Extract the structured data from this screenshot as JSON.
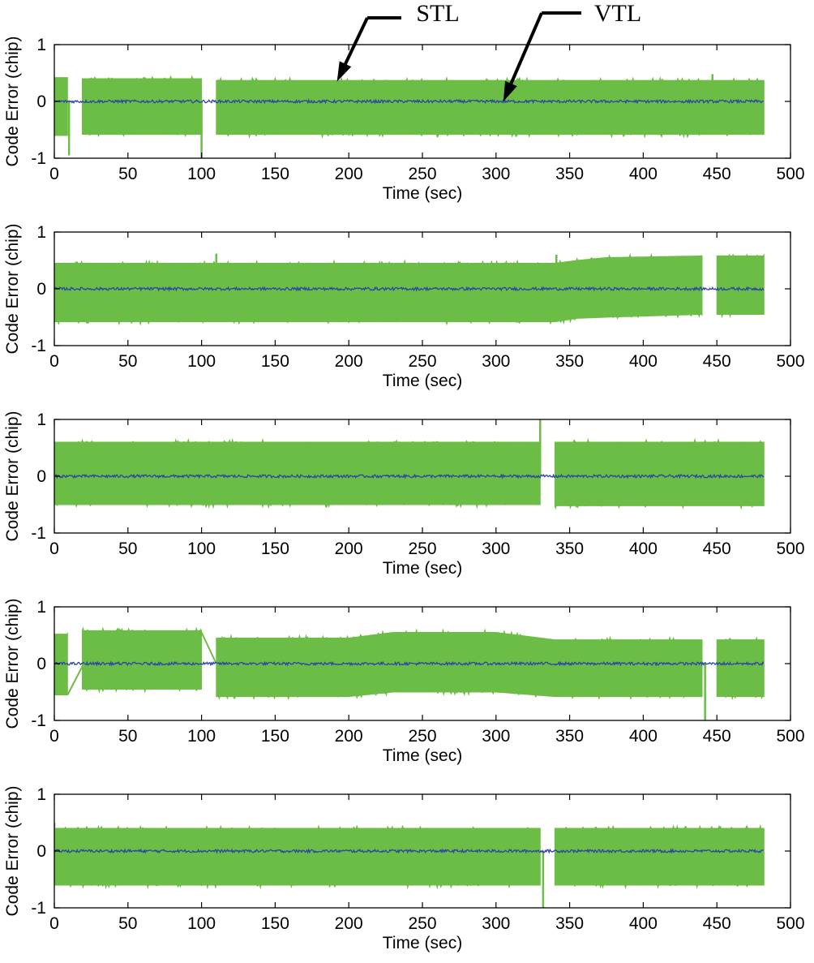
{
  "colors": {
    "stl": "#6cbd45",
    "vtl": "#2b45a6",
    "axes": "#000000",
    "background": "#ffffff"
  },
  "annotations": [
    {
      "label": "STL",
      "target_x": 192,
      "target_y": 0.35,
      "panel": 0
    },
    {
      "label": "VTL",
      "target_x": 305,
      "target_y": 0.0,
      "panel": 0
    }
  ],
  "chart_data": [
    {
      "type": "line",
      "xlabel": "Time (sec)",
      "ylabel": "Code Error (chip)",
      "xlim": [
        0,
        500
      ],
      "ylim": [
        -1,
        1
      ],
      "xticks": [
        0,
        50,
        100,
        150,
        200,
        250,
        300,
        350,
        400,
        450,
        500
      ],
      "yticks": [
        -1,
        0,
        1
      ],
      "grid": false,
      "series": [
        {
          "name": "STL",
          "kind": "envelope",
          "segments": [
            {
              "x": [
                0,
                9
              ],
              "upper": [
                0.42,
                0.42
              ],
              "lower": [
                -0.6,
                -0.6
              ]
            },
            {
              "x": [
                19,
                100
              ],
              "upper": [
                0.4,
                0.4
              ],
              "lower": [
                -0.58,
                -0.58
              ]
            },
            {
              "x": [
                110,
                482
              ],
              "upper": [
                0.37,
                0.37
              ],
              "lower": [
                -0.58,
                -0.58
              ]
            }
          ],
          "spikes": [
            [
              10,
              -0.95
            ],
            [
              100,
              -1.0
            ],
            [
              447,
              0.48
            ]
          ]
        },
        {
          "name": "VTL",
          "kind": "line",
          "x_range": [
            0,
            482
          ],
          "level": 0.0,
          "noise": 0.025
        }
      ]
    },
    {
      "type": "line",
      "xlabel": "Time (sec)",
      "ylabel": "Code Error (chip)",
      "xlim": [
        0,
        500
      ],
      "ylim": [
        -1,
        1
      ],
      "xticks": [
        0,
        50,
        100,
        150,
        200,
        250,
        300,
        350,
        400,
        450,
        500
      ],
      "yticks": [
        -1,
        0,
        1
      ],
      "grid": false,
      "series": [
        {
          "name": "STL",
          "kind": "envelope",
          "segments": [
            {
              "x": [
                0,
                340,
                355,
                375,
                440
              ],
              "upper": [
                0.45,
                0.45,
                0.5,
                0.55,
                0.58
              ],
              "lower": [
                -0.58,
                -0.58,
                -0.52,
                -0.5,
                -0.45
              ]
            },
            {
              "x": [
                450,
                482
              ],
              "upper": [
                0.58,
                0.58
              ],
              "lower": [
                -0.45,
                -0.45
              ]
            }
          ],
          "spikes": [
            [
              110,
              0.62
            ],
            [
              341,
              0.6
            ]
          ]
        },
        {
          "name": "VTL",
          "kind": "line",
          "x_range": [
            0,
            482
          ],
          "level": 0.0,
          "noise": 0.025
        }
      ]
    },
    {
      "type": "line",
      "xlabel": "Time (sec)",
      "ylabel": "Code Error (chip)",
      "xlim": [
        0,
        500
      ],
      "ylim": [
        -1,
        1
      ],
      "xticks": [
        0,
        50,
        100,
        150,
        200,
        250,
        300,
        350,
        400,
        450,
        500
      ],
      "yticks": [
        -1,
        0,
        1
      ],
      "grid": false,
      "series": [
        {
          "name": "STL",
          "kind": "envelope",
          "segments": [
            {
              "x": [
                0,
                330
              ],
              "upper": [
                0.6,
                0.6
              ],
              "lower": [
                -0.5,
                -0.5
              ]
            },
            {
              "x": [
                340,
                482
              ],
              "upper": [
                0.6,
                0.6
              ],
              "lower": [
                -0.52,
                -0.52
              ]
            }
          ],
          "spikes": [
            [
              330,
              1.0
            ]
          ]
        },
        {
          "name": "VTL",
          "kind": "line",
          "x_range": [
            0,
            482
          ],
          "level": 0.0,
          "noise": 0.025
        }
      ]
    },
    {
      "type": "line",
      "xlabel": "Time (sec)",
      "ylabel": "Code Error (chip)",
      "xlim": [
        0,
        500
      ],
      "ylim": [
        -1,
        1
      ],
      "xticks": [
        0,
        50,
        100,
        150,
        200,
        250,
        300,
        350,
        400,
        450,
        500
      ],
      "yticks": [
        -1,
        0,
        1
      ],
      "grid": false,
      "series": [
        {
          "name": "STL",
          "kind": "envelope",
          "segments": [
            {
              "x": [
                0,
                9
              ],
              "upper": [
                0.52,
                0.52
              ],
              "lower": [
                -0.55,
                -0.55
              ]
            },
            {
              "x": [
                19,
                100
              ],
              "upper": [
                0.58,
                0.58
              ],
              "lower": [
                -0.45,
                -0.45
              ]
            },
            {
              "x": [
                110,
                200,
                230,
                300,
                340,
                440
              ],
              "upper": [
                0.45,
                0.45,
                0.55,
                0.55,
                0.42,
                0.42
              ],
              "lower": [
                -0.58,
                -0.58,
                -0.5,
                -0.5,
                -0.58,
                -0.58
              ]
            },
            {
              "x": [
                450,
                482
              ],
              "upper": [
                0.42,
                0.42
              ],
              "lower": [
                -0.58,
                -0.58
              ]
            }
          ],
          "spikes": [
            [
              442,
              -1.0
            ]
          ],
          "ramps": [
            [
              [
                9,
                -0.55
              ],
              [
                20,
                0.0
              ]
            ],
            [
              [
                100,
                0.55
              ],
              [
                110,
                0.0
              ]
            ]
          ]
        },
        {
          "name": "VTL",
          "kind": "line",
          "x_range": [
            0,
            482
          ],
          "level": 0.0,
          "noise": 0.025
        }
      ]
    },
    {
      "type": "line",
      "xlabel": "Time (sec)",
      "ylabel": "Code Error (chip)",
      "xlim": [
        0,
        500
      ],
      "ylim": [
        -1,
        1
      ],
      "xticks": [
        0,
        50,
        100,
        150,
        200,
        250,
        300,
        350,
        400,
        450,
        500
      ],
      "yticks": [
        -1,
        0,
        1
      ],
      "grid": false,
      "series": [
        {
          "name": "STL",
          "kind": "envelope",
          "segments": [
            {
              "x": [
                0,
                330
              ],
              "upper": [
                0.4,
                0.4
              ],
              "lower": [
                -0.6,
                -0.6
              ]
            },
            {
              "x": [
                340,
                482
              ],
              "upper": [
                0.4,
                0.4
              ],
              "lower": [
                -0.6,
                -0.6
              ]
            }
          ],
          "spikes": [
            [
              0,
              0.5
            ],
            [
              332,
              -1.0
            ]
          ]
        },
        {
          "name": "VTL",
          "kind": "line",
          "x_range": [
            0,
            482
          ],
          "level": 0.0,
          "noise": 0.025
        }
      ]
    }
  ]
}
